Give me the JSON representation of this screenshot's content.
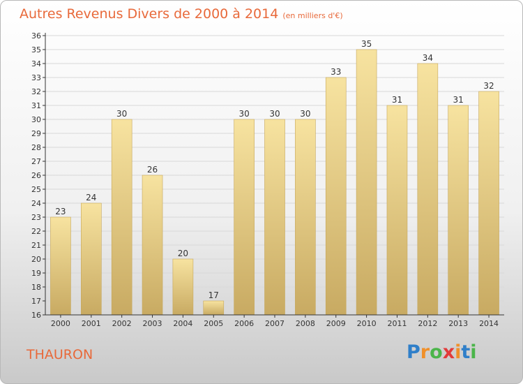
{
  "header": {
    "title": "Autres Revenus Divers de 2000 à 2014",
    "subtitle": "(en milliers d'€)"
  },
  "footer": {
    "place": "THAURON",
    "logo_letters": [
      "P",
      "r",
      "o",
      "x",
      "i",
      "t",
      "i"
    ],
    "logo_colors": [
      "#2f7fc9",
      "#f0902a",
      "#4bb54a",
      "#e23b3b",
      "#f0902a",
      "#2f7fc9",
      "#4bb54a"
    ]
  },
  "colors": {
    "bar_top": "#f7e3a0",
    "bar_bottom": "#c8aa62",
    "bar_edge": "#c6a75b",
    "grid": "#d8d8d8",
    "axis": "#333333",
    "title": "#e8693a"
  },
  "chart_data": {
    "type": "bar",
    "title": "Autres Revenus Divers de 2000 à 2014",
    "subtitle": "(en milliers d'€)",
    "categories": [
      "2000",
      "2001",
      "2002",
      "2003",
      "2004",
      "2005",
      "2006",
      "2007",
      "2008",
      "2009",
      "2010",
      "2011",
      "2012",
      "2013",
      "2014"
    ],
    "values": [
      23,
      24,
      30,
      26,
      20,
      17,
      30,
      30,
      30,
      33,
      35,
      31,
      34,
      31,
      32
    ],
    "ylim": [
      16,
      36
    ],
    "yticks": [
      16,
      17,
      18,
      19,
      20,
      21,
      22,
      23,
      24,
      25,
      26,
      27,
      28,
      29,
      30,
      31,
      32,
      33,
      34,
      35,
      36
    ],
    "grid": true,
    "legend": "none"
  }
}
